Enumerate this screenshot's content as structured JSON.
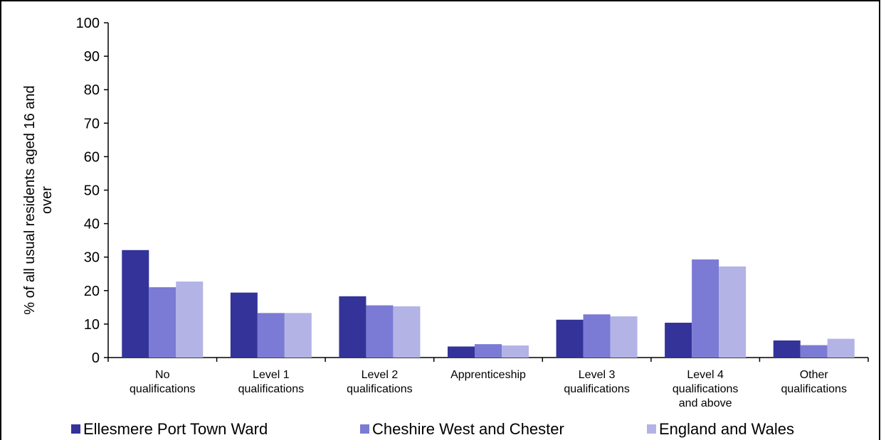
{
  "chart_data": {
    "type": "bar",
    "title": "",
    "xlabel": "",
    "ylabel": "% of all usual residents aged 16 and over",
    "ylim": [
      0,
      100
    ],
    "yticks": [
      0,
      10,
      20,
      30,
      40,
      50,
      60,
      70,
      80,
      90,
      100
    ],
    "grid": false,
    "legend_position": "bottom",
    "categories": [
      "No qualifications",
      "Level 1 qualifications",
      "Level 2 qualifications",
      "Apprenticeship",
      "Level 3 qualifications",
      "Level 4 qualifications and above",
      "Other qualifications"
    ],
    "series": [
      {
        "name": "Ellesmere Port Town Ward",
        "color": "#333399",
        "values": [
          32.1,
          19.4,
          18.3,
          3.3,
          11.3,
          10.4,
          5.1
        ]
      },
      {
        "name": "Cheshire West and Chester",
        "color": "#7b7bd5",
        "values": [
          21.0,
          13.3,
          15.6,
          4.0,
          12.9,
          29.3,
          3.7
        ]
      },
      {
        "name": "England and Wales",
        "color": "#b3b3e6",
        "values": [
          22.7,
          13.3,
          15.3,
          3.6,
          12.3,
          27.2,
          5.6
        ]
      }
    ]
  }
}
